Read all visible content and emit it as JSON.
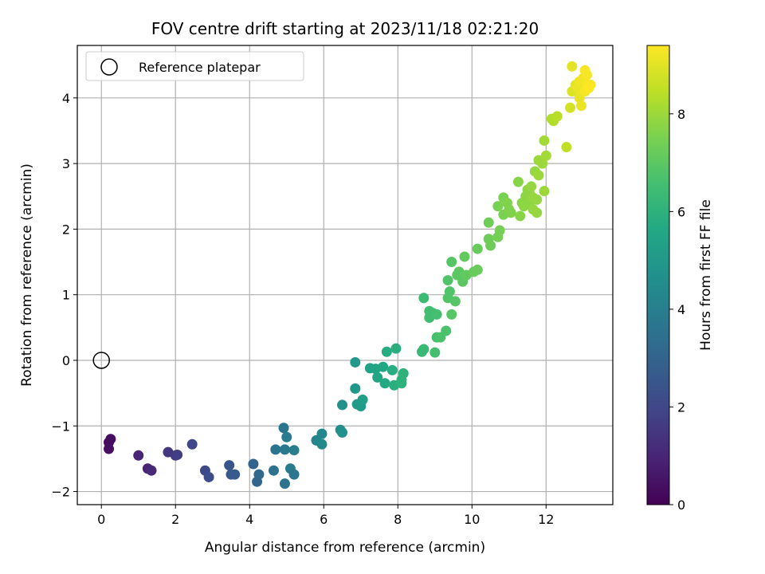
{
  "chart_data": {
    "type": "scatter",
    "title": "FOV centre drift starting at 2023/11/18 02:21:20",
    "xlabel": "Angular distance from reference (arcmin)",
    "ylabel": "Rotation from reference (arcmin)",
    "xlim": [
      -0.65,
      13.8
    ],
    "ylim": [
      -2.2,
      4.8
    ],
    "xticks": [
      0,
      2,
      4,
      6,
      8,
      10,
      12
    ],
    "yticks": [
      -2,
      -1,
      0,
      1,
      2,
      3,
      4
    ],
    "grid": true,
    "legend": {
      "position": "top-left",
      "entries": [
        "Reference platepar"
      ]
    },
    "reference": {
      "x": 0,
      "y": 0,
      "label": "Reference platepar"
    },
    "colorbar": {
      "label": "Hours from first FF file",
      "range": [
        0,
        9.4
      ],
      "ticks": [
        0,
        2,
        4,
        6,
        8
      ],
      "colormap": "viridis"
    },
    "points": [
      {
        "x": 0.2,
        "y": -1.25,
        "c": 0.3
      },
      {
        "x": 0.25,
        "y": -1.2,
        "c": 0.35
      },
      {
        "x": 0.2,
        "y": -1.35,
        "c": 0.4
      },
      {
        "x": 1.0,
        "y": -1.45,
        "c": 1.0
      },
      {
        "x": 1.25,
        "y": -1.65,
        "c": 0.9
      },
      {
        "x": 1.35,
        "y": -1.68,
        "c": 1.1
      },
      {
        "x": 1.8,
        "y": -1.4,
        "c": 1.5
      },
      {
        "x": 2.0,
        "y": -1.45,
        "c": 1.6
      },
      {
        "x": 2.05,
        "y": -1.44,
        "c": 1.7
      },
      {
        "x": 2.45,
        "y": -1.28,
        "c": 2.0
      },
      {
        "x": 2.8,
        "y": -1.68,
        "c": 2.1
      },
      {
        "x": 2.9,
        "y": -1.78,
        "c": 2.2
      },
      {
        "x": 3.45,
        "y": -1.6,
        "c": 2.5
      },
      {
        "x": 3.5,
        "y": -1.74,
        "c": 2.6
      },
      {
        "x": 3.6,
        "y": -1.74,
        "c": 2.7
      },
      {
        "x": 4.1,
        "y": -1.58,
        "c": 3.0
      },
      {
        "x": 4.2,
        "y": -1.85,
        "c": 3.1
      },
      {
        "x": 4.25,
        "y": -1.74,
        "c": 3.2
      },
      {
        "x": 4.65,
        "y": -1.68,
        "c": 3.5
      },
      {
        "x": 4.7,
        "y": -1.36,
        "c": 3.6
      },
      {
        "x": 4.92,
        "y": -1.03,
        "c": 3.7
      },
      {
        "x": 4.95,
        "y": -1.36,
        "c": 3.8
      },
      {
        "x": 5.0,
        "y": -1.17,
        "c": 3.9
      },
      {
        "x": 4.95,
        "y": -1.88,
        "c": 3.6
      },
      {
        "x": 5.1,
        "y": -1.65,
        "c": 3.9
      },
      {
        "x": 5.2,
        "y": -1.37,
        "c": 4.0
      },
      {
        "x": 5.2,
        "y": -1.74,
        "c": 3.7
      },
      {
        "x": 5.8,
        "y": -1.22,
        "c": 4.2
      },
      {
        "x": 5.95,
        "y": -1.12,
        "c": 4.3
      },
      {
        "x": 5.95,
        "y": -1.28,
        "c": 4.4
      },
      {
        "x": 6.45,
        "y": -1.06,
        "c": 4.6
      },
      {
        "x": 6.5,
        "y": -1.1,
        "c": 4.7
      },
      {
        "x": 6.5,
        "y": -0.68,
        "c": 4.8
      },
      {
        "x": 6.85,
        "y": -0.03,
        "c": 5.0
      },
      {
        "x": 6.85,
        "y": -0.43,
        "c": 5.0
      },
      {
        "x": 6.9,
        "y": -0.67,
        "c": 5.1
      },
      {
        "x": 7.0,
        "y": -0.7,
        "c": 5.1
      },
      {
        "x": 7.05,
        "y": -0.6,
        "c": 5.2
      },
      {
        "x": 7.25,
        "y": -0.12,
        "c": 5.4
      },
      {
        "x": 7.4,
        "y": -0.13,
        "c": 5.5
      },
      {
        "x": 7.45,
        "y": -0.26,
        "c": 5.5
      },
      {
        "x": 7.6,
        "y": -0.1,
        "c": 5.6
      },
      {
        "x": 7.65,
        "y": -0.35,
        "c": 5.7
      },
      {
        "x": 7.7,
        "y": 0.13,
        "c": 5.8
      },
      {
        "x": 7.85,
        "y": -0.15,
        "c": 5.8
      },
      {
        "x": 7.9,
        "y": -0.38,
        "c": 5.9
      },
      {
        "x": 7.95,
        "y": 0.18,
        "c": 5.9
      },
      {
        "x": 8.1,
        "y": -0.35,
        "c": 6.0
      },
      {
        "x": 8.15,
        "y": -0.2,
        "c": 6.0
      },
      {
        "x": 8.1,
        "y": -0.3,
        "c": 6.0
      },
      {
        "x": 8.65,
        "y": 0.13,
        "c": 6.3
      },
      {
        "x": 8.7,
        "y": 0.17,
        "c": 6.3
      },
      {
        "x": 8.7,
        "y": 0.95,
        "c": 6.4
      },
      {
        "x": 8.85,
        "y": 0.75,
        "c": 6.5
      },
      {
        "x": 8.85,
        "y": 0.65,
        "c": 6.5
      },
      {
        "x": 8.95,
        "y": 0.72,
        "c": 6.5
      },
      {
        "x": 9.0,
        "y": 0.12,
        "c": 6.6
      },
      {
        "x": 9.05,
        "y": 0.7,
        "c": 6.6
      },
      {
        "x": 9.05,
        "y": 0.35,
        "c": 6.6
      },
      {
        "x": 9.15,
        "y": 0.35,
        "c": 6.7
      },
      {
        "x": 9.3,
        "y": 0.45,
        "c": 6.7
      },
      {
        "x": 9.35,
        "y": 0.95,
        "c": 6.8
      },
      {
        "x": 9.4,
        "y": 1.05,
        "c": 6.8
      },
      {
        "x": 9.35,
        "y": 1.22,
        "c": 6.8
      },
      {
        "x": 9.45,
        "y": 1.5,
        "c": 6.9
      },
      {
        "x": 9.45,
        "y": 0.7,
        "c": 6.9
      },
      {
        "x": 9.55,
        "y": 0.9,
        "c": 6.9
      },
      {
        "x": 9.6,
        "y": 1.3,
        "c": 7.0
      },
      {
        "x": 9.65,
        "y": 1.35,
        "c": 7.0
      },
      {
        "x": 9.75,
        "y": 1.2,
        "c": 7.0
      },
      {
        "x": 9.8,
        "y": 1.58,
        "c": 7.1
      },
      {
        "x": 9.85,
        "y": 1.3,
        "c": 7.1
      },
      {
        "x": 10.05,
        "y": 1.35,
        "c": 7.2
      },
      {
        "x": 10.15,
        "y": 1.38,
        "c": 7.2
      },
      {
        "x": 10.15,
        "y": 1.7,
        "c": 7.2
      },
      {
        "x": 10.45,
        "y": 1.85,
        "c": 7.3
      },
      {
        "x": 10.45,
        "y": 2.1,
        "c": 7.3
      },
      {
        "x": 10.5,
        "y": 1.75,
        "c": 7.3
      },
      {
        "x": 10.7,
        "y": 1.88,
        "c": 7.4
      },
      {
        "x": 10.75,
        "y": 1.98,
        "c": 7.4
      },
      {
        "x": 10.7,
        "y": 2.35,
        "c": 7.5
      },
      {
        "x": 10.85,
        "y": 2.48,
        "c": 7.5
      },
      {
        "x": 10.85,
        "y": 2.22,
        "c": 7.5
      },
      {
        "x": 10.95,
        "y": 2.4,
        "c": 7.6
      },
      {
        "x": 11.0,
        "y": 2.3,
        "c": 7.6
      },
      {
        "x": 11.05,
        "y": 2.25,
        "c": 7.6
      },
      {
        "x": 11.25,
        "y": 2.72,
        "c": 7.7
      },
      {
        "x": 11.3,
        "y": 2.2,
        "c": 7.7
      },
      {
        "x": 11.35,
        "y": 2.4,
        "c": 7.7
      },
      {
        "x": 11.4,
        "y": 2.35,
        "c": 7.8
      },
      {
        "x": 11.45,
        "y": 2.5,
        "c": 7.8
      },
      {
        "x": 11.5,
        "y": 2.6,
        "c": 7.8
      },
      {
        "x": 11.55,
        "y": 2.4,
        "c": 7.8
      },
      {
        "x": 11.55,
        "y": 2.55,
        "c": 7.8
      },
      {
        "x": 11.6,
        "y": 2.65,
        "c": 7.9
      },
      {
        "x": 11.65,
        "y": 2.3,
        "c": 7.9
      },
      {
        "x": 11.65,
        "y": 2.48,
        "c": 7.9
      },
      {
        "x": 11.7,
        "y": 2.88,
        "c": 7.9
      },
      {
        "x": 11.75,
        "y": 2.25,
        "c": 7.9
      },
      {
        "x": 11.75,
        "y": 2.45,
        "c": 7.9
      },
      {
        "x": 11.8,
        "y": 2.82,
        "c": 8.0
      },
      {
        "x": 11.8,
        "y": 3.05,
        "c": 8.0
      },
      {
        "x": 11.9,
        "y": 3.0,
        "c": 8.0
      },
      {
        "x": 11.95,
        "y": 2.58,
        "c": 8.0
      },
      {
        "x": 12.0,
        "y": 3.12,
        "c": 8.1
      },
      {
        "x": 11.95,
        "y": 3.35,
        "c": 8.1
      },
      {
        "x": 12.15,
        "y": 3.68,
        "c": 8.3
      },
      {
        "x": 12.2,
        "y": 3.65,
        "c": 8.3
      },
      {
        "x": 12.3,
        "y": 3.72,
        "c": 8.4
      },
      {
        "x": 12.55,
        "y": 3.25,
        "c": 8.5
      },
      {
        "x": 12.65,
        "y": 3.85,
        "c": 8.8
      },
      {
        "x": 12.7,
        "y": 4.1,
        "c": 8.9
      },
      {
        "x": 12.7,
        "y": 4.48,
        "c": 9.0
      },
      {
        "x": 12.8,
        "y": 4.2,
        "c": 9.0
      },
      {
        "x": 12.85,
        "y": 4.15,
        "c": 9.1
      },
      {
        "x": 12.9,
        "y": 4.0,
        "c": 9.1
      },
      {
        "x": 12.95,
        "y": 3.88,
        "c": 9.1
      },
      {
        "x": 12.9,
        "y": 4.25,
        "c": 9.2
      },
      {
        "x": 13.0,
        "y": 4.3,
        "c": 9.2
      },
      {
        "x": 13.05,
        "y": 4.42,
        "c": 9.3
      },
      {
        "x": 13.05,
        "y": 4.1,
        "c": 9.3
      },
      {
        "x": 13.1,
        "y": 4.2,
        "c": 9.3
      },
      {
        "x": 13.1,
        "y": 4.35,
        "c": 9.3
      },
      {
        "x": 13.15,
        "y": 4.15,
        "c": 9.4
      },
      {
        "x": 13.2,
        "y": 4.2,
        "c": 9.4
      }
    ]
  }
}
